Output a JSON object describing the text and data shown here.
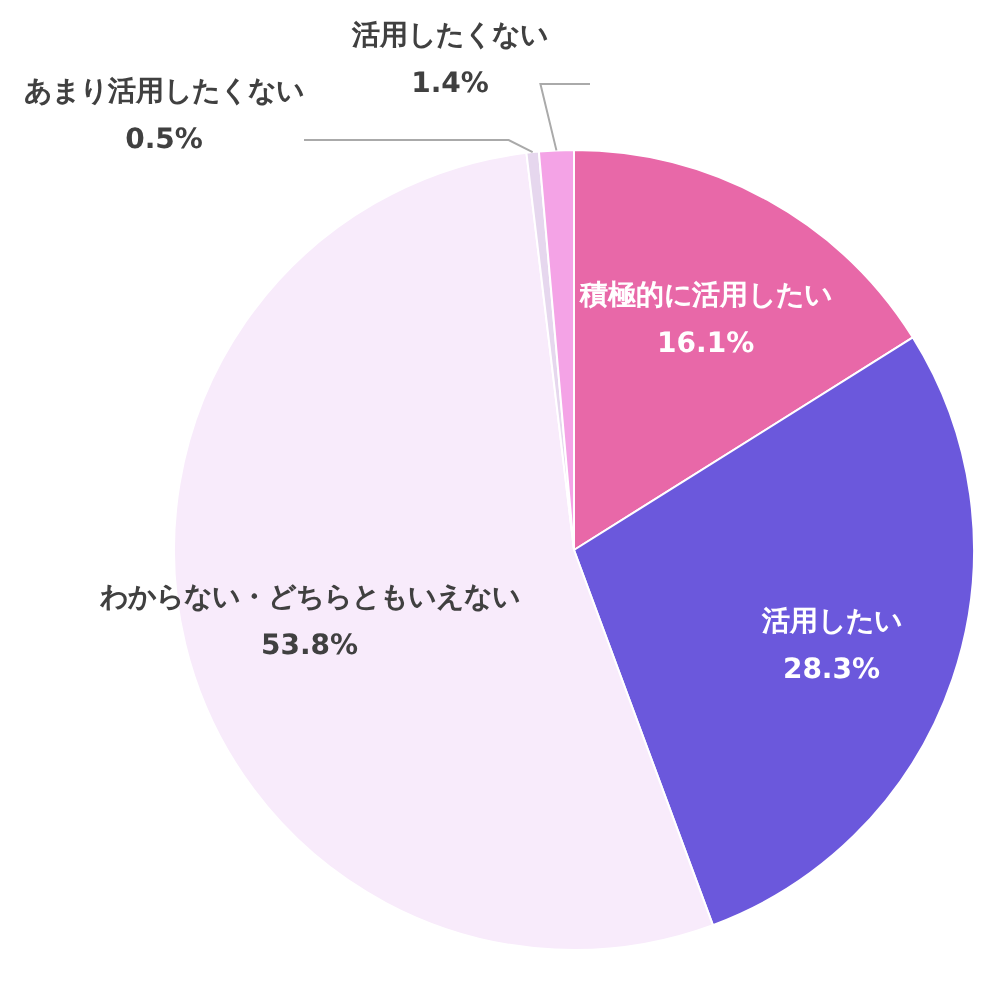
{
  "chart_data": {
    "type": "pie",
    "categories": [
      "積極的に活用したい",
      "活用したい",
      "わからない・どちらともいえない",
      "あまり活用したくない",
      "活用したくない"
    ],
    "values": [
      16.1,
      28.3,
      53.8,
      0.5,
      1.4
    ],
    "value_labels": [
      "16.1%",
      "28.3%",
      "53.8%",
      "0.5%",
      "1.4%"
    ],
    "colors": [
      "#e868a8",
      "#6b58dc",
      "#f8ebfb",
      "#e6d7ee",
      "#f4a3e6"
    ]
  }
}
